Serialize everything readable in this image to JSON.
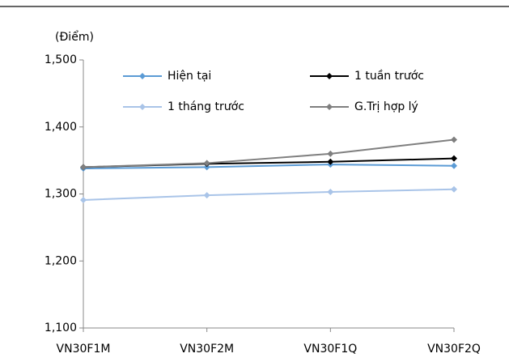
{
  "chart_data": {
    "type": "line",
    "y_label": "(Điểm)",
    "categories": [
      "VN30F1M",
      "VN30F2M",
      "VN30F1Q",
      "VN30F2Q"
    ],
    "series": [
      {
        "name": "Hiện tại",
        "color": "#5b9bd5",
        "values": [
          1338,
          1340,
          1344,
          1342
        ]
      },
      {
        "name": "1 tuần trước",
        "color": "#000000",
        "values": [
          1340,
          1345,
          1348,
          1353
        ]
      },
      {
        "name": "1 tháng trước",
        "color": "#a9c4e8",
        "values": [
          1291,
          1298,
          1303,
          1307
        ]
      },
      {
        "name": "G.Trị hợp lý",
        "color": "#7f7f7f",
        "values": [
          1340,
          1346,
          1360,
          1381
        ]
      }
    ],
    "ylim": [
      1100,
      1500
    ],
    "yticks": [
      {
        "value": 1100,
        "label": "1,100"
      },
      {
        "value": 1200,
        "label": "1,200"
      },
      {
        "value": 1300,
        "label": "1,300"
      },
      {
        "value": 1400,
        "label": "1,400"
      },
      {
        "value": 1500,
        "label": "1,500"
      }
    ],
    "grid": false,
    "legend": "top"
  }
}
